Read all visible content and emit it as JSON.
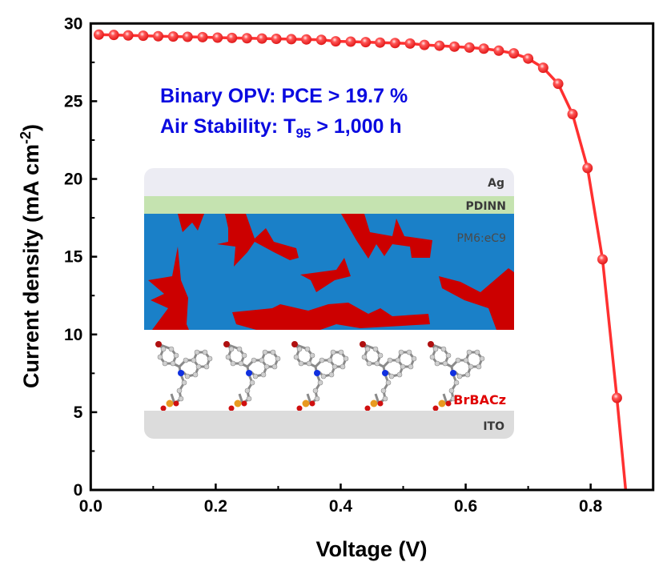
{
  "chart_data": {
    "type": "line",
    "xlabel": "Voltage (V)",
    "ylabel": "Current density (mA cm",
    "ylabel_sup": "-2",
    "ylabel_close": ")",
    "xlim": [
      0,
      0.9
    ],
    "ylim": [
      0,
      30
    ],
    "xticks": [
      "0.0",
      "0.2",
      "0.4",
      "0.6",
      "0.8"
    ],
    "yticks": [
      "0",
      "5",
      "10",
      "15",
      "20",
      "25",
      "30"
    ],
    "grid": false,
    "series": [
      {
        "color": "#ff3030",
        "marker": "circle",
        "x": [
          0.013,
          0.037,
          0.06,
          0.084,
          0.108,
          0.132,
          0.155,
          0.179,
          0.203,
          0.226,
          0.25,
          0.274,
          0.297,
          0.321,
          0.345,
          0.369,
          0.392,
          0.416,
          0.44,
          0.463,
          0.487,
          0.511,
          0.534,
          0.558,
          0.582,
          0.606,
          0.629,
          0.653,
          0.677,
          0.7,
          0.724,
          0.748,
          0.771,
          0.795,
          0.819,
          0.842
        ],
        "y": [
          29.28,
          29.26,
          29.23,
          29.21,
          29.18,
          29.16,
          29.14,
          29.12,
          29.09,
          29.07,
          29.05,
          29.03,
          29.01,
          28.99,
          28.97,
          28.95,
          28.85,
          28.83,
          28.8,
          28.77,
          28.74,
          28.71,
          28.62,
          28.57,
          28.51,
          28.45,
          28.38,
          28.25,
          28.08,
          27.74,
          27.15,
          26.12,
          24.17,
          20.7,
          14.83,
          5.92
        ],
        "line_end": [
          0.856,
          0
        ]
      }
    ],
    "annotations": {
      "line1": "Binary OPV: PCE > 19.7 %",
      "line2_prefix": "Air Stability: T",
      "line2_sub": "95",
      "line2_suffix": " > 1,000 h",
      "color": "#0a0ae0"
    }
  },
  "inset": {
    "layers": {
      "ag": "Ag",
      "pdinn": "PDINN",
      "active": "PM6:eC9",
      "sam": "BrBACz",
      "ito": "ITO"
    },
    "colors": {
      "ag": "#ececf3",
      "pdinn": "#c5e3b0",
      "active_donor": "#1a80c8",
      "active_acceptor": "#cc0000",
      "sam_label": "#e00000",
      "ito": "#dcdcdc"
    }
  }
}
